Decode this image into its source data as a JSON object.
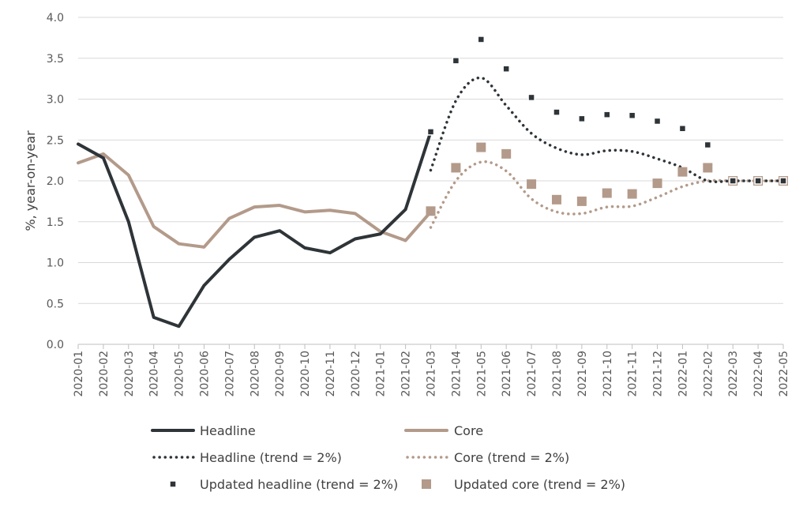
{
  "chart_data": {
    "type": "line",
    "ylabel": "%, year-on-year",
    "xlabel": "",
    "title": "",
    "ylim": [
      0,
      4
    ],
    "yticks": [
      "0.0",
      "0.5",
      "1.0",
      "1.5",
      "2.0",
      "2.5",
      "3.0",
      "3.5",
      "4.0"
    ],
    "grid": "horizontal",
    "legend_position": "bottom",
    "categories": [
      "2020-01",
      "2020-02",
      "2020-03",
      "2020-04",
      "2020-05",
      "2020-06",
      "2020-07",
      "2020-08",
      "2020-09",
      "2020-10",
      "2020-11",
      "2020-12",
      "2021-01",
      "2021-02",
      "2021-03",
      "2021-04",
      "2021-05",
      "2021-06",
      "2021-07",
      "2021-08",
      "2021-09",
      "2021-10",
      "2021-11",
      "2021-12",
      "2022-01",
      "2022-02",
      "2022-03",
      "2022-04",
      "2022-05"
    ],
    "series": [
      {
        "name": "Headline",
        "style": "solid",
        "color": "#2e3438",
        "values": [
          2.45,
          2.28,
          1.5,
          0.33,
          0.22,
          0.72,
          1.04,
          1.31,
          1.39,
          1.18,
          1.12,
          1.29,
          1.35,
          1.65,
          2.6,
          null,
          null,
          null,
          null,
          null,
          null,
          null,
          null,
          null,
          null,
          null,
          null,
          null,
          null
        ]
      },
      {
        "name": "Core",
        "style": "solid",
        "color": "#b39a8a",
        "values": [
          2.22,
          2.33,
          2.07,
          1.44,
          1.23,
          1.19,
          1.54,
          1.68,
          1.7,
          1.62,
          1.64,
          1.6,
          1.38,
          1.27,
          1.62,
          null,
          null,
          null,
          null,
          null,
          null,
          null,
          null,
          null,
          null,
          null,
          null,
          null,
          null
        ]
      },
      {
        "name": "Headline (trend = 2%)",
        "style": "dotted",
        "color": "#2e3438",
        "values": [
          null,
          null,
          null,
          null,
          null,
          null,
          null,
          null,
          null,
          null,
          null,
          null,
          null,
          null,
          2.13,
          2.98,
          3.26,
          2.92,
          2.58,
          2.4,
          2.32,
          2.37,
          2.36,
          2.27,
          2.16,
          2.0,
          2.0,
          2.0,
          2.0
        ]
      },
      {
        "name": "Core (trend = 2%)",
        "style": "dotted",
        "color": "#b39a8a",
        "values": [
          null,
          null,
          null,
          null,
          null,
          null,
          null,
          null,
          null,
          null,
          null,
          null,
          null,
          null,
          1.43,
          2.0,
          2.23,
          2.12,
          1.78,
          1.62,
          1.6,
          1.68,
          1.69,
          1.8,
          1.93,
          2.0,
          2.0,
          2.0,
          2.0
        ]
      },
      {
        "name": "Updated headline (trend = 2%)",
        "style": "marker",
        "color": "#2e3438",
        "values": [
          null,
          null,
          null,
          null,
          null,
          null,
          null,
          null,
          null,
          null,
          null,
          null,
          null,
          null,
          2.6,
          3.47,
          3.73,
          3.37,
          3.02,
          2.84,
          2.76,
          2.81,
          2.8,
          2.73,
          2.64,
          2.44,
          2.0,
          2.0,
          2.0
        ]
      },
      {
        "name": "Updated core (trend = 2%)",
        "style": "marker",
        "color": "#b39a8a",
        "values": [
          null,
          null,
          null,
          null,
          null,
          null,
          null,
          null,
          null,
          null,
          null,
          null,
          null,
          null,
          1.63,
          2.16,
          2.41,
          2.33,
          1.96,
          1.77,
          1.75,
          1.85,
          1.84,
          1.97,
          2.11,
          2.16,
          2.0,
          2.0,
          2.0
        ]
      }
    ]
  }
}
